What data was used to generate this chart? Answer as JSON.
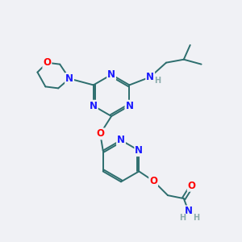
{
  "background_color": "#f0f1f5",
  "atom_colors": {
    "C": "#2d6e6e",
    "N": "#1a1aff",
    "O": "#ff0000",
    "H": "#8aabab",
    "bond": "#2d6e6e"
  },
  "figsize": [
    3.0,
    3.0
  ],
  "dpi": 100
}
